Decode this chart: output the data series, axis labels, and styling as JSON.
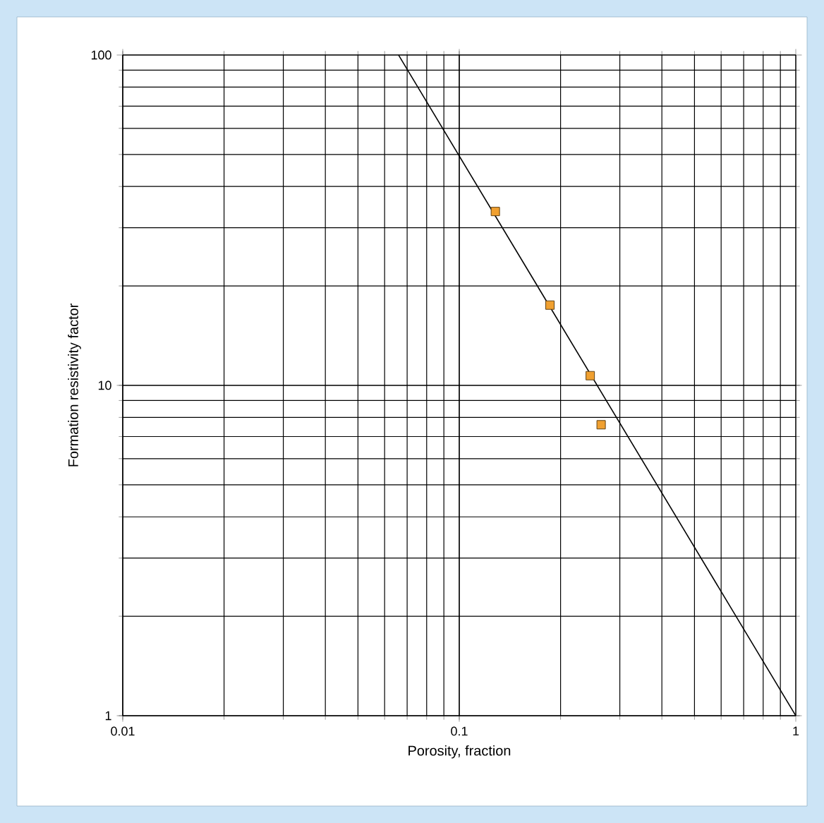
{
  "chart_data": {
    "type": "scatter",
    "xlabel": "Porosity, fraction",
    "ylabel": "Formation resistivity factor",
    "log": "xy",
    "grid": true,
    "xlim": [
      0.01,
      1
    ],
    "ylim": [
      1,
      100
    ],
    "xticks": [
      0.01,
      0.1,
      1
    ],
    "yticks": [
      1,
      10,
      100
    ],
    "series": [
      {
        "marker": "square",
        "color": "#f0a030",
        "x": [
          0.128,
          0.186,
          0.245,
          0.264
        ],
        "values": [
          33.6,
          17.5,
          10.7,
          7.6
        ]
      },
      {
        "type": "line",
        "marker": "none",
        "color": "#000000",
        "x": [
          0.066,
          1
        ],
        "values": [
          100,
          1
        ]
      }
    ]
  }
}
